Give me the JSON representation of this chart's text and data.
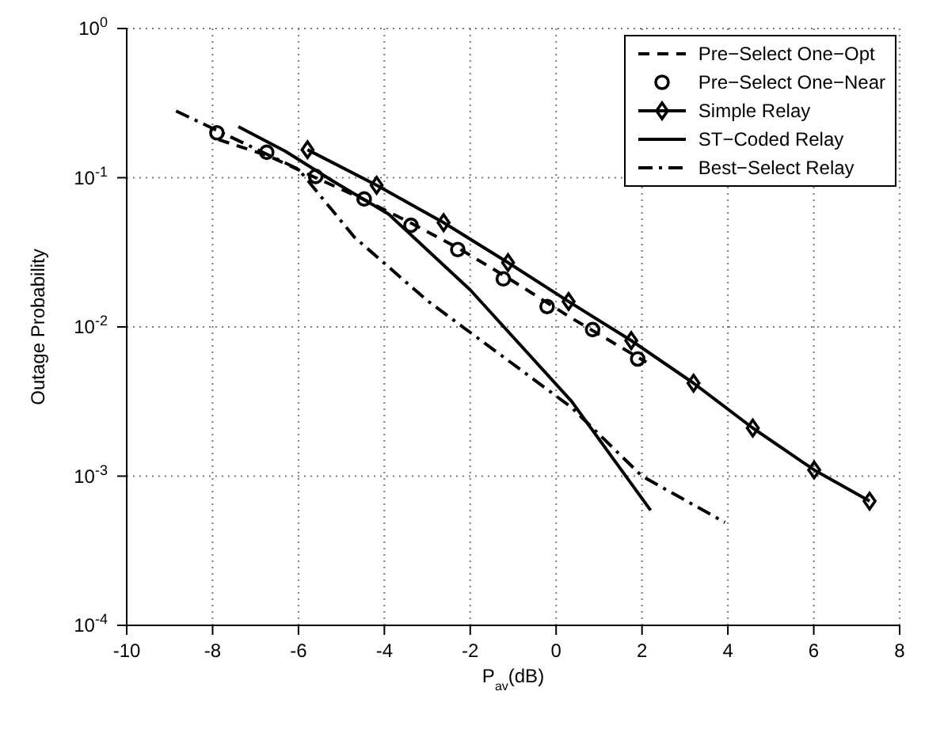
{
  "chart_data": {
    "type": "line",
    "xlabel": "P$_{av}$(dB)",
    "ylabel": "Outage Probability",
    "xlim": [
      -10,
      8
    ],
    "xticks": [
      -10,
      -8,
      -6,
      -4,
      -2,
      0,
      2,
      4,
      6,
      8
    ],
    "ylim": [
      0.0001,
      1
    ],
    "yticks": [
      {
        "value": 0.0001,
        "label": "10$^{-4}$"
      },
      {
        "value": 0.001,
        "label": "10$^{-3}$"
      },
      {
        "value": 0.01,
        "label": "10$^{-2}$"
      },
      {
        "value": 0.1,
        "label": "10$^{-1}$"
      },
      {
        "value": 1,
        "label": "10$^{0}$"
      }
    ],
    "log": "y",
    "grid": true,
    "legend": "top right",
    "series": [
      {
        "name": "Pre−Select One−Opt",
        "color": "#000000",
        "line_style": "dashed",
        "marker": "none",
        "x": [
          -7.86,
          -6.7,
          -5.6,
          -4.5,
          -3.4,
          -2.3,
          -1.2,
          0.35,
          2.1
        ],
        "values": [
          0.18,
          0.14,
          0.1,
          0.072,
          0.05,
          0.034,
          0.022,
          0.0115,
          0.0058
        ]
      },
      {
        "name": "Pre−Select One−Near",
        "type": "scatter",
        "color": "#000000",
        "marker": "circle",
        "x": [
          -7.9,
          -6.74,
          -5.6,
          -4.47,
          -3.38,
          -2.29,
          -1.23,
          -0.21,
          0.85,
          1.9
        ],
        "values": [
          0.2,
          0.148,
          0.102,
          0.072,
          0.048,
          0.033,
          0.021,
          0.0137,
          0.0096,
          0.0061
        ]
      },
      {
        "name": "Simple Relay",
        "color": "#000000",
        "line_style": "solid",
        "marker": "diamond",
        "x": [
          -5.79,
          -4.18,
          -2.62,
          -1.12,
          0.29,
          1.75,
          3.2,
          4.58,
          6.01,
          7.3
        ],
        "values": [
          0.154,
          0.089,
          0.05,
          0.027,
          0.0148,
          0.0081,
          0.0042,
          0.0021,
          0.0011,
          0.00068
        ]
      },
      {
        "name": "ST−Coded Relay",
        "color": "#000000",
        "line_style": "solid",
        "marker": "none",
        "x": [
          -7.4,
          -6.3,
          -5.2,
          -3.9,
          -2,
          0.35,
          2.2
        ],
        "values": [
          0.22,
          0.15,
          0.095,
          0.057,
          0.0177,
          0.0032,
          0.00059
        ]
      },
      {
        "name": "Best−Select Relay",
        "color": "#000000",
        "line_style": "dashdot",
        "marker": "none",
        "x": [
          -8.85,
          -6,
          -4.7,
          -3,
          0.35,
          2,
          3.93
        ],
        "values": [
          0.28,
          0.114,
          0.04,
          0.015,
          0.0029,
          0.001,
          0.00049
        ]
      }
    ]
  }
}
